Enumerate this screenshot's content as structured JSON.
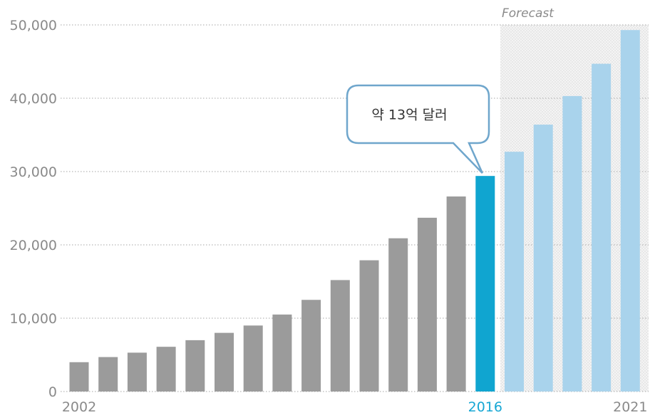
{
  "chart_data": {
    "type": "bar",
    "years": [
      2002,
      2003,
      2004,
      2005,
      2006,
      2007,
      2008,
      2009,
      2010,
      2011,
      2012,
      2013,
      2014,
      2015,
      2016,
      2017,
      2018,
      2019,
      2020,
      2021
    ],
    "values": [
      4000,
      4700,
      5300,
      6100,
      7000,
      8000,
      9000,
      10500,
      12500,
      15200,
      17900,
      20900,
      23700,
      26600,
      29400,
      32700,
      36400,
      40300,
      44700,
      49300
    ],
    "segments": {
      "historical": {
        "from": 2002,
        "to": 2015,
        "color": "#9b9b9b"
      },
      "highlight": {
        "year": 2016,
        "color": "#10a5d0"
      },
      "forecast": {
        "from": 2017,
        "to": 2021,
        "color": "#a9d3ec"
      }
    },
    "ylim": [
      0,
      50000
    ],
    "yticks": [
      "0",
      "10,000",
      "20,000",
      "30,000",
      "40,000",
      "50,000"
    ],
    "xtick_labels": [
      {
        "year": 2002,
        "label": "2002"
      },
      {
        "year": 2016,
        "label": "2016",
        "highlight": true
      },
      {
        "year": 2021,
        "label": "2021"
      }
    ],
    "forecast_label": "Forecast",
    "callout": {
      "text": "약 13억 달러",
      "points_to": 2016
    },
    "grid": true,
    "legend": "none"
  }
}
